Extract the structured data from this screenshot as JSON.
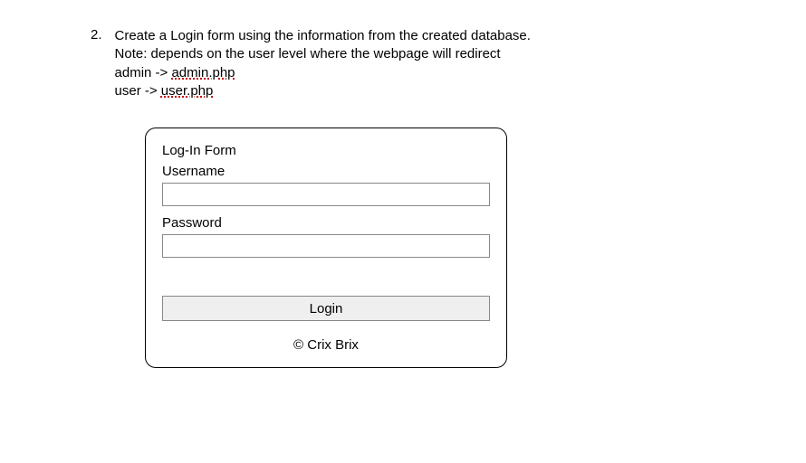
{
  "question": {
    "number": "2.",
    "line1": "Create a Login form using the information from the created database.",
    "line2": "Note: depends on the user level where the webpage will redirect",
    "admin_label": "admin -> ",
    "admin_link": "admin.php",
    "user_label": "user -> ",
    "user_link": "user.php"
  },
  "form": {
    "title": "Log-In Form",
    "username_label": "Username",
    "password_label": "Password",
    "username_value": "",
    "password_value": "",
    "login_button": "Login",
    "footer": "© Crix Brix"
  },
  "style": {
    "background_color": "#ffffff",
    "text_color": "#000000",
    "border_color": "#000000",
    "input_border": "#888888",
    "button_bg": "#efefef",
    "spellcheck_color": "#c00000",
    "border_radius": "12px",
    "form_width": 400
  }
}
